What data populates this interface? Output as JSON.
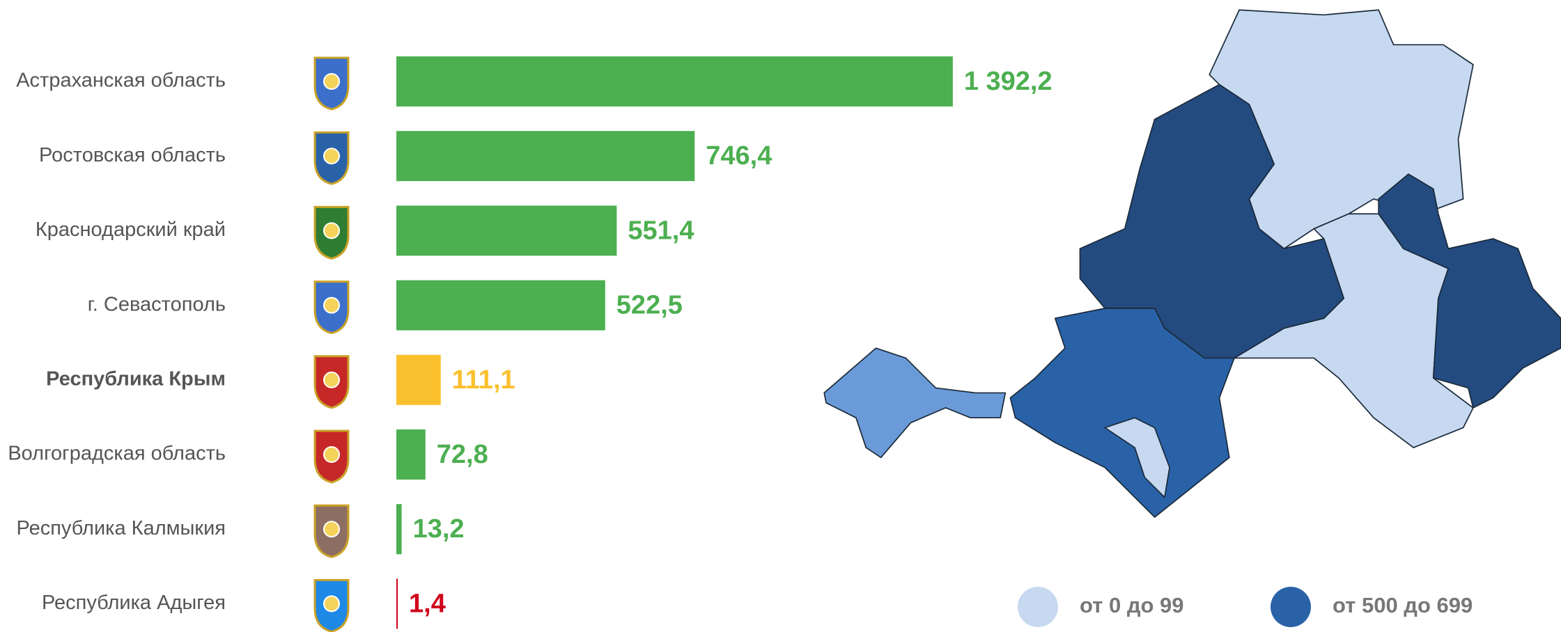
{
  "chart_data": {
    "type": "bar",
    "orientation": "horizontal",
    "categories": [
      "Астраханская область",
      "Ростовская область",
      "Краснодарский край",
      "г. Севастополь",
      "Республика Крым",
      "Волгоградская область",
      "Республика Калмыкия",
      "Республика Адыгея"
    ],
    "values": [
      1392.2,
      746.4,
      551.4,
      522.5,
      111.1,
      72.8,
      13.2,
      1.4
    ],
    "value_labels": [
      "1 392,2",
      "746,4",
      "551,4",
      "522,5",
      "111,1",
      "72,8",
      "13,2",
      "1,4"
    ],
    "colors": [
      "#4caf50",
      "#4caf50",
      "#4caf50",
      "#4caf50",
      "#fbc02d",
      "#4caf50",
      "#4caf50",
      "#d0021b"
    ],
    "highlight": 4,
    "legend": [
      {
        "name": "от 0 до 99",
        "color": "#c6d9f1"
      },
      {
        "name": "от 500 до 699",
        "color": "#2a62a8"
      }
    ]
  }
}
